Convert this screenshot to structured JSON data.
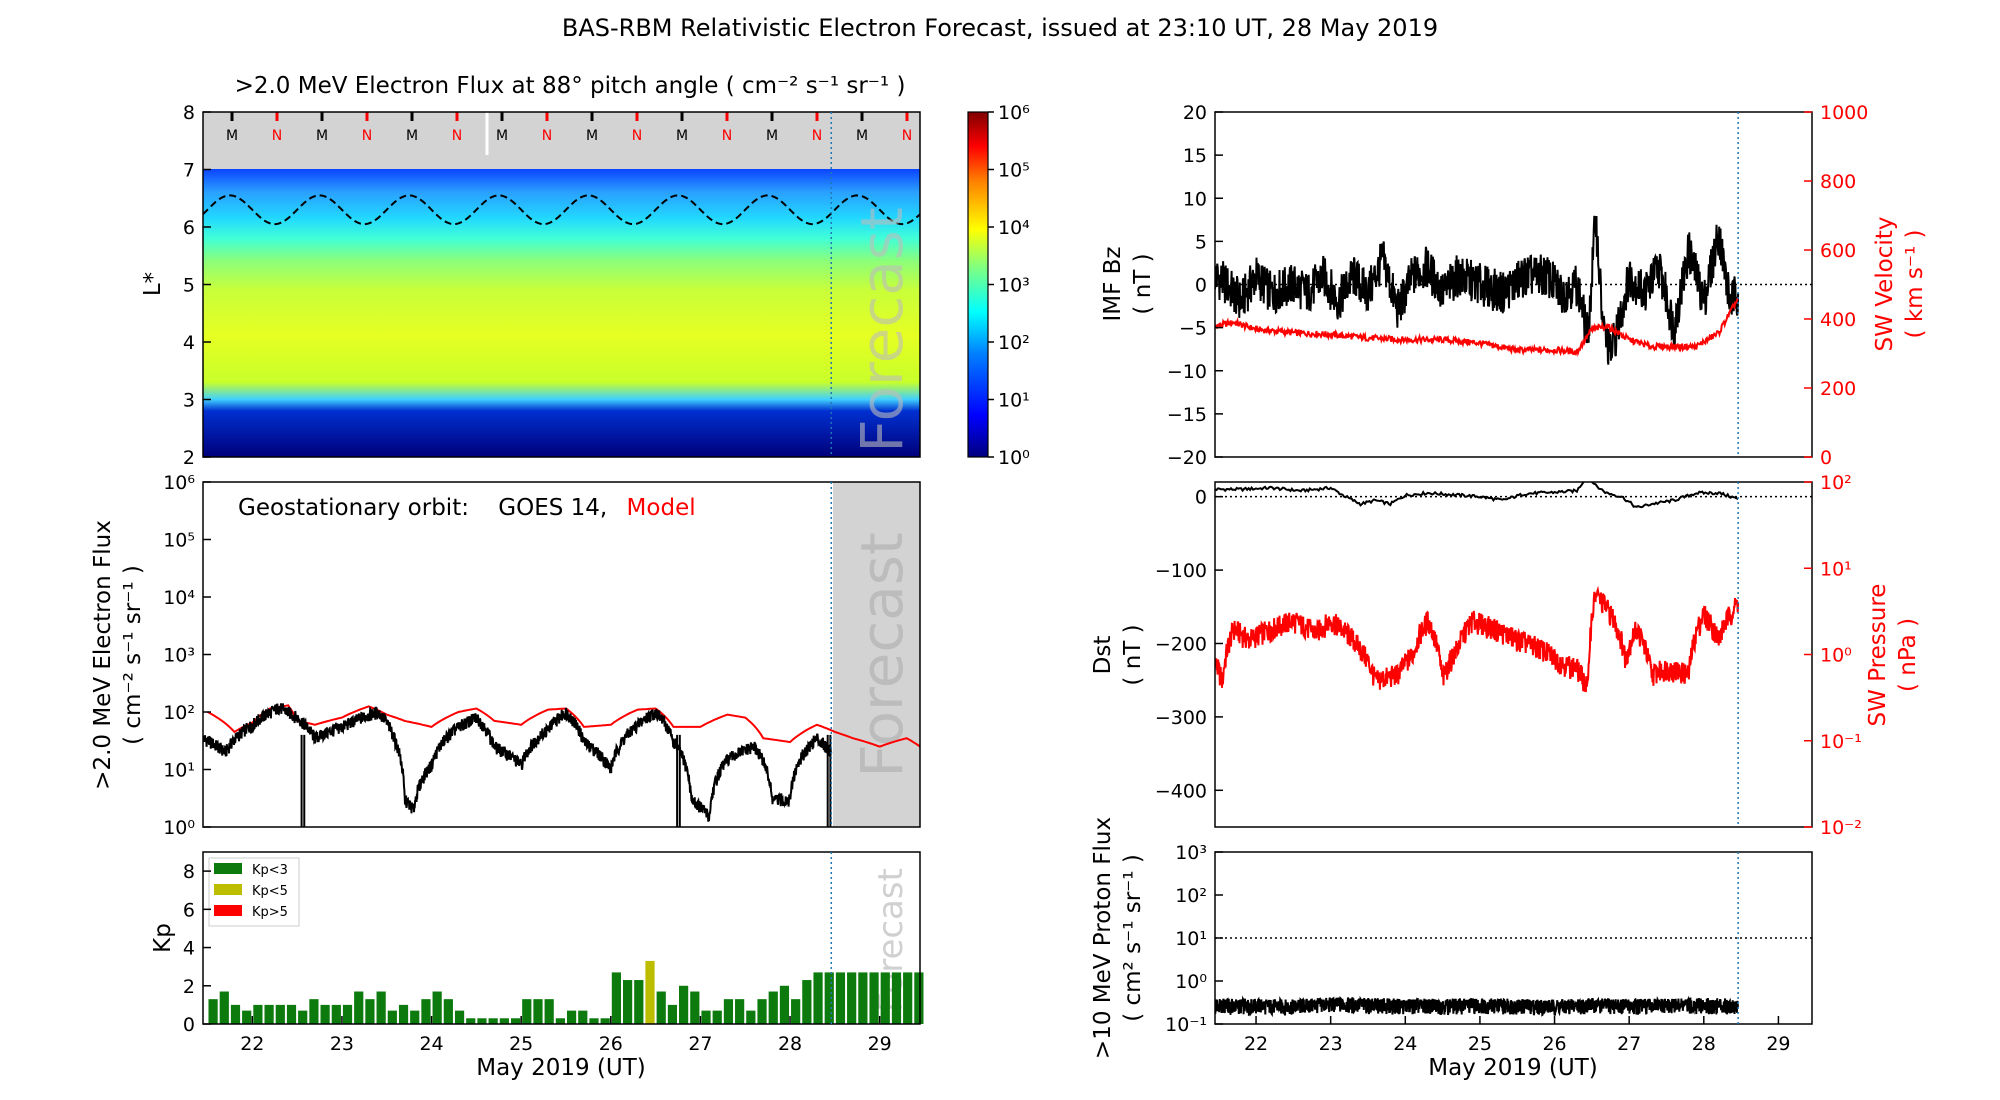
{
  "figure": {
    "title": "BAS-RBM Relativistic Electron Forecast, issued at 23:10 UT, 28 May 2019",
    "xlabel": "May 2019 (UT)",
    "forecast_label": "Forecast",
    "model_color": "#ff0000",
    "obs_color": "#000000",
    "forecast_line_day": 28.46
  },
  "chart_data": [
    {
      "id": "lstar_flux_map",
      "type": "heatmap",
      "title": ">2.0 MeV Electron Flux at 88° pitch angle ( cm⁻² s⁻¹ sr⁻¹ )",
      "ylabel": "L*",
      "xlim": [
        21.45,
        29.45
      ],
      "ylim": [
        2,
        8
      ],
      "yticks": [
        2,
        3,
        4,
        5,
        6,
        7,
        8
      ],
      "colorbar": {
        "scale": "log",
        "ticks": [
          "10⁰",
          "10¹",
          "10²",
          "10³",
          "10⁴",
          "10⁵",
          "10⁶"
        ]
      },
      "mn_markers": [
        "M",
        "N",
        "M",
        "N",
        "M",
        "N",
        "M",
        "N",
        "M",
        "N",
        "M",
        "N",
        "M",
        "N",
        "M",
        "N"
      ],
      "mn_colors": {
        "M": "#000000",
        "N": "#ff0000"
      },
      "dashed_boundary": {
        "center": 6.3,
        "amplitude": 0.25,
        "period_days": 1.0
      }
    },
    {
      "id": "geo_flux",
      "type": "line",
      "ylabel": ">2.0 MeV Electron Flux",
      "yunits": "( cm⁻² s⁻¹ sr⁻¹ )",
      "legend": {
        "prefix": "Geostationary orbit:",
        "series_a": "GOES 14,",
        "series_b": "Model"
      },
      "yscale": "log",
      "ylim": [
        1,
        1000000
      ],
      "yticks": [
        "10⁰",
        "10¹",
        "10²",
        "10³",
        "10⁴",
        "10⁵",
        "10⁶"
      ],
      "series": [
        {
          "name": "Model",
          "color": "#ff0000",
          "x": [
            21.5,
            21.8,
            22.0,
            22.2,
            22.4,
            22.5,
            22.7,
            23.0,
            23.3,
            23.5,
            23.7,
            24.0,
            24.3,
            24.5,
            24.7,
            25.0,
            25.3,
            25.5,
            25.7,
            26.0,
            26.3,
            26.5,
            26.7,
            27.0,
            27.3,
            27.5,
            27.7,
            28.0,
            28.3,
            28.5,
            28.7,
            29.0,
            29.3,
            29.45
          ],
          "y": [
            100,
            45,
            65,
            115,
            130,
            70,
            60,
            80,
            125,
            90,
            70,
            55,
            100,
            115,
            70,
            60,
            110,
            115,
            55,
            60,
            110,
            115,
            55,
            55,
            90,
            80,
            35,
            30,
            60,
            45,
            35,
            25,
            35,
            25
          ]
        },
        {
          "name": "GOES 14",
          "color": "#000000",
          "x": [
            21.45,
            21.7,
            22.0,
            22.3,
            22.5,
            22.7,
            23.0,
            23.4,
            23.6,
            23.7,
            23.8,
            24.0,
            24.3,
            24.5,
            24.7,
            25.0,
            25.3,
            25.5,
            25.7,
            26.0,
            26.3,
            26.5,
            26.7,
            26.9,
            27.1,
            27.3,
            27.6,
            27.8,
            28.0,
            28.3,
            28.46
          ],
          "y": [
            35,
            20,
            60,
            120,
            80,
            35,
            55,
            100,
            30,
            3,
            2,
            12,
            55,
            80,
            25,
            12,
            50,
            100,
            30,
            10,
            60,
            100,
            30,
            3,
            1.5,
            15,
            25,
            3,
            3,
            35,
            20
          ]
        }
      ]
    },
    {
      "id": "kp_index",
      "type": "bar",
      "ylabel": "Kp",
      "ylim": [
        0,
        9
      ],
      "yticks": [
        0,
        2,
        4,
        6,
        8
      ],
      "legend": [
        {
          "label": "Kp<3",
          "color": "#0d7a0d"
        },
        {
          "label": "Kp<5",
          "color": "#bdbd00"
        },
        {
          "label": "Kp>5",
          "color": "#ff0000"
        }
      ],
      "start_day": 21.5,
      "bin_days": 0.125,
      "values": [
        1.3,
        1.7,
        1.0,
        0.7,
        1.0,
        1.0,
        1.0,
        1.0,
        0.7,
        1.3,
        1.0,
        1.0,
        1.0,
        1.7,
        1.3,
        1.7,
        0.7,
        1.0,
        0.7,
        1.3,
        1.7,
        1.3,
        0.7,
        0.3,
        0.3,
        0.3,
        0.3,
        0.3,
        1.3,
        1.3,
        1.3,
        0.3,
        0.7,
        0.7,
        0.3,
        0.3,
        2.7,
        2.3,
        2.3,
        3.3,
        1.7,
        1.0,
        2.0,
        1.7,
        0.7,
        0.7,
        1.3,
        1.3,
        0.7,
        1.3,
        1.7,
        2.0,
        1.3,
        2.3,
        2.7,
        2.7,
        2.7,
        2.7,
        2.7,
        2.7,
        2.7,
        2.7,
        2.7,
        2.7
      ]
    },
    {
      "id": "imf_bz",
      "type": "line",
      "ylabel": "IMF Bz",
      "yunits": "( nT )",
      "ylim": [
        -20,
        20
      ],
      "yticks": [
        -20,
        -15,
        -10,
        -5,
        0,
        5,
        10,
        15,
        20
      ],
      "ylabel_right": "SW Velocity",
      "yunits_right": "( km s⁻¹ )",
      "ylim_right": [
        0,
        1000
      ],
      "yticks_right": [
        0,
        200,
        400,
        600,
        800,
        1000
      ],
      "series": [
        {
          "name": "IMF Bz",
          "color": "#000000",
          "x": [
            21.45,
            21.6,
            21.8,
            22.0,
            22.2,
            22.5,
            22.7,
            22.9,
            23.1,
            23.3,
            23.5,
            23.7,
            23.9,
            24.1,
            24.3,
            24.5,
            24.7,
            25.0,
            25.3,
            25.6,
            25.9,
            26.1,
            26.3,
            26.45,
            26.55,
            26.65,
            26.75,
            26.85,
            27.0,
            27.2,
            27.4,
            27.6,
            27.8,
            28.0,
            28.2,
            28.35,
            28.46
          ],
          "y": [
            1,
            0,
            -2,
            1,
            -1,
            0,
            -1,
            1,
            -2,
            1,
            -1,
            3,
            -3,
            1,
            2,
            -1,
            1,
            0,
            -1,
            1,
            1,
            -1,
            0,
            -6,
            8,
            -5,
            -8,
            -5,
            1,
            -1,
            2,
            -5,
            4,
            -2,
            6,
            -2,
            -1
          ]
        },
        {
          "name": "SW Velocity",
          "color": "#ff0000",
          "axis": "right",
          "x": [
            21.45,
            21.7,
            22.0,
            22.5,
            23.0,
            23.5,
            24.0,
            24.5,
            25.0,
            25.5,
            26.0,
            26.3,
            26.5,
            26.7,
            27.0,
            27.3,
            27.6,
            27.9,
            28.2,
            28.46
          ],
          "y": [
            380,
            390,
            370,
            360,
            355,
            345,
            340,
            340,
            330,
            310,
            310,
            305,
            370,
            380,
            340,
            320,
            320,
            320,
            360,
            460
          ]
        }
      ]
    },
    {
      "id": "dst",
      "type": "line",
      "ylabel": "Dst",
      "yunits": "( nT )",
      "ylim": [
        -450,
        20
      ],
      "yticks": [
        -400,
        -300,
        -200,
        -100,
        0
      ],
      "ylabel_right": "SW Pressure",
      "yunits_right": "( nPa )",
      "yscale_right": "log",
      "ylim_right": [
        0.01,
        100
      ],
      "yticks_right": [
        "10⁻²",
        "10⁻¹",
        "10⁰",
        "10¹",
        "10²"
      ],
      "series": [
        {
          "name": "Dst",
          "color": "#000000",
          "x": [
            21.45,
            21.8,
            22.2,
            22.6,
            23.0,
            23.2,
            23.4,
            23.6,
            23.8,
            24.0,
            24.3,
            24.6,
            25.0,
            25.3,
            25.6,
            26.0,
            26.3,
            26.45,
            26.55,
            26.7,
            26.9,
            27.1,
            27.3,
            27.6,
            27.9,
            28.2,
            28.46
          ],
          "y": [
            10,
            10,
            12,
            8,
            12,
            0,
            -10,
            -5,
            -10,
            2,
            5,
            3,
            0,
            -5,
            4,
            6,
            8,
            30,
            15,
            5,
            0,
            -15,
            -10,
            -5,
            5,
            5,
            -3
          ]
        },
        {
          "name": "SW Pressure",
          "color": "#ff0000",
          "axis": "right",
          "x": [
            21.45,
            21.55,
            21.7,
            21.9,
            22.2,
            22.5,
            22.8,
            23.0,
            23.3,
            23.6,
            23.9,
            24.1,
            24.3,
            24.5,
            24.7,
            24.9,
            25.2,
            25.5,
            25.8,
            26.1,
            26.3,
            26.45,
            26.55,
            26.75,
            26.95,
            27.1,
            27.3,
            27.5,
            27.8,
            28.0,
            28.2,
            28.46
          ],
          "y": [
            0.8,
            0.5,
            2.0,
            1.5,
            2.0,
            2.5,
            1.8,
            2.5,
            1.5,
            0.5,
            0.6,
            1.0,
            2.5,
            0.5,
            1.2,
            2.5,
            2.0,
            1.5,
            1.2,
            0.8,
            0.7,
            0.4,
            5.0,
            3.0,
            0.9,
            2.0,
            0.6,
            0.7,
            0.6,
            3.0,
            1.5,
            4.0
          ]
        }
      ]
    },
    {
      "id": "proton_flux",
      "type": "line",
      "ylabel": ">10 MeV Proton Flux",
      "yunits": "( cm² s⁻¹ sr⁻¹ )",
      "yscale": "log",
      "ylim": [
        0.1,
        1000
      ],
      "yticks": [
        "10⁻¹",
        "10⁰",
        "10¹",
        "10²",
        "10³"
      ],
      "threshold": 10,
      "series": [
        {
          "name": "Proton Flux",
          "color": "#000000",
          "x": [
            21.45,
            22.0,
            22.5,
            23.0,
            23.5,
            24.0,
            24.5,
            25.0,
            25.5,
            26.0,
            26.5,
            27.0,
            27.5,
            28.0,
            28.46
          ],
          "y": [
            0.25,
            0.25,
            0.24,
            0.27,
            0.26,
            0.25,
            0.25,
            0.26,
            0.25,
            0.24,
            0.26,
            0.25,
            0.25,
            0.26,
            0.25
          ]
        }
      ]
    }
  ],
  "xaxis": {
    "ticks": [
      "22",
      "23",
      "24",
      "25",
      "26",
      "27",
      "28",
      "29"
    ],
    "tick_days": [
      22,
      23,
      24,
      25,
      26,
      27,
      28,
      29
    ],
    "xlim": [
      21.45,
      29.45
    ]
  }
}
